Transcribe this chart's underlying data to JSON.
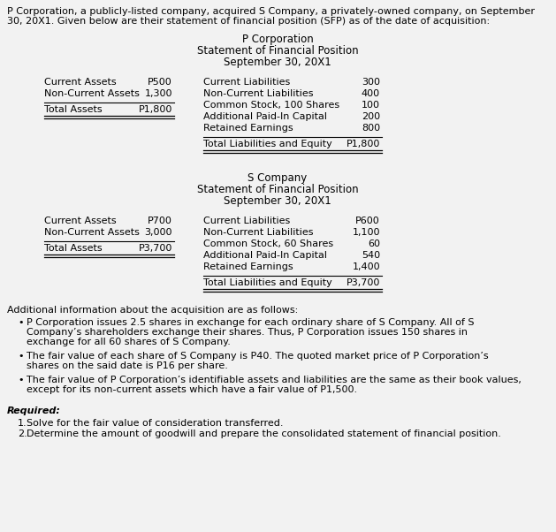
{
  "bg_color": "#f2f2f2",
  "text_color": "#000000",
  "intro_text_line1": "P Corporation, a publicly-listed company, acquired S Company, a privately-owned company, on September",
  "intro_text_line2": "30, 20X1. Given below are their statement of financial position (SFP) as of the date of acquisition:",
  "p_corp": {
    "title1": "P Corporation",
    "title2": "Statement of Financial Position",
    "title3": "September 30, 20X1",
    "assets": [
      [
        "Current Assets",
        "P500"
      ],
      [
        "Non-Current Assets",
        "1,300"
      ]
    ],
    "total_assets_label": "Total Assets",
    "total_assets_value": "P1,800",
    "liabilities": [
      [
        "Current Liabilities",
        "300"
      ],
      [
        "Non-Current Liabilities",
        "400"
      ],
      [
        "Common Stock, 100 Shares",
        "100"
      ],
      [
        "Additional Paid-In Capital",
        "200"
      ],
      [
        "Retained Earnings",
        "800"
      ]
    ],
    "total_liab_label": "Total Liabilities and Equity",
    "total_liab_value": "P1,800"
  },
  "s_comp": {
    "title1": "S Company",
    "title2": "Statement of Financial Position",
    "title3": "September 30, 20X1",
    "assets": [
      [
        "Current Assets",
        "P700"
      ],
      [
        "Non-Current Assets",
        "3,000"
      ]
    ],
    "total_assets_label": "Total Assets",
    "total_assets_value": "P3,700",
    "liabilities": [
      [
        "Current Liabilities",
        "P600"
      ],
      [
        "Non-Current Liabilities",
        "1,100"
      ],
      [
        "Common Stock, 60 Shares",
        "60"
      ],
      [
        "Additional Paid-In Capital",
        "540"
      ],
      [
        "Retained Earnings",
        "1,400"
      ]
    ],
    "total_liab_label": "Total Liabilities and Equity",
    "total_liab_value": "P3,700"
  },
  "additional_info_header": "Additional information about the acquisition are as follows:",
  "bullets": [
    [
      "P Corporation issues 2.5 shares in exchange for each ordinary share of S Company. All of S",
      "Company’s shareholders exchange their shares. Thus, P Corporation issues 150 shares in",
      "exchange for all 60 shares of S Company."
    ],
    [
      "The fair value of each share of S Company is P40. The quoted market price of P Corporation’s",
      "shares on the said date is P16 per share."
    ],
    [
      "The fair value of P Corporation’s identifiable assets and liabilities are the same as their book values,",
      "except for its non-current assets which have a fair value of P1,500."
    ]
  ],
  "required_header": "Required:",
  "required_items": [
    "Solve for the fair value of consideration transferred.",
    "Determine the amount of goodwill and prepare the consolidated statement of financial position."
  ],
  "fs": 8.0,
  "fs_title": 8.5
}
